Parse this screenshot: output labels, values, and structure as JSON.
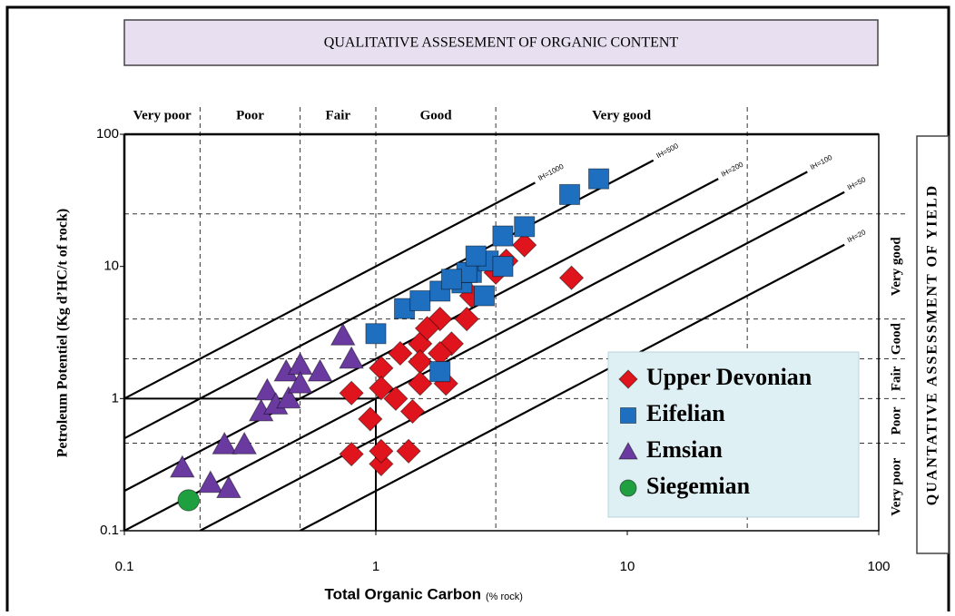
{
  "chart_data": {
    "type": "scatter",
    "title": "QUALITATIVE ASSESEMENT OF ORGANIC CONTENT",
    "right_title": "QUANTATIVE ASSESSMENT OF YIELD",
    "ylabel": "Petroleum Potentiel (Kg d’HC/t of rock)",
    "xlabel": "Total Organic Carbon",
    "xlabel_unit": "(% rock)",
    "log": true,
    "xlim": [
      0.1,
      100
    ],
    "ylim": [
      0.1,
      100
    ],
    "xticks": [
      0.1,
      1,
      10,
      100
    ],
    "yticks": [
      0.1,
      1,
      10,
      100
    ],
    "toc_zones": {
      "labels": [
        "Very poor",
        "Poor",
        "Fair",
        "Good",
        "Very good"
      ],
      "bounds": [
        0.1,
        0.2,
        0.5,
        1,
        3,
        30
      ]
    },
    "yield_zones": {
      "labels": [
        "Very poor",
        "Poor",
        "Fair",
        "Good",
        "Very good"
      ],
      "bounds": [
        0.1,
        0.46,
        1,
        2,
        4,
        25
      ]
    },
    "cutoff": {
      "x": 1,
      "y": 1
    },
    "hi_lines": [
      {
        "label": "IH=1000",
        "hi": 1000,
        "x_end": 4.3
      },
      {
        "label": "IH=500",
        "hi": 500,
        "x_end": 12.7
      },
      {
        "label": "IH=200",
        "hi": 200,
        "x_end": 23
      },
      {
        "label": "IH=100",
        "hi": 100,
        "x_end": 52
      },
      {
        "label": "IH=50",
        "hi": 50,
        "x_end": 73
      },
      {
        "label": "IH=20",
        "hi": 20,
        "x_end": 73
      }
    ],
    "series": [
      {
        "name": "Upper Devonian",
        "color": "#e0141c",
        "shape": "diamond",
        "x": [
          6.0,
          3.9,
          0.8,
          1.05,
          1.25,
          1.5,
          1.5,
          1.5,
          1.2,
          1.4,
          0.95,
          1.05,
          0.8,
          1.05,
          1.05,
          1.35,
          1.9,
          2.0,
          1.8,
          2.3,
          1.6,
          2.4,
          3.0,
          3.3,
          1.8
        ],
        "values": [
          8.2,
          14.5,
          1.1,
          1.7,
          2.2,
          2.6,
          1.9,
          1.3,
          1.0,
          0.8,
          0.7,
          1.2,
          0.38,
          0.32,
          0.4,
          0.4,
          1.3,
          2.6,
          4.0,
          4.0,
          3.4,
          6,
          9,
          11,
          2.2
        ]
      },
      {
        "name": "Eifelian",
        "color": "#1f6fc0",
        "shape": "square",
        "x": [
          1.0,
          1.3,
          1.5,
          1.8,
          2.2,
          2.4,
          2.8,
          3.2,
          3.9,
          5.9,
          7.7,
          1.8,
          2.3,
          2.7,
          2.0,
          2.5,
          3.2
        ],
        "values": [
          3.1,
          4.8,
          5.5,
          6.5,
          7.5,
          9,
          11,
          17,
          20,
          35,
          46,
          1.6,
          9,
          6,
          8,
          12,
          10
        ]
      },
      {
        "name": "Emsian",
        "color": "#6a3aa0",
        "shape": "triangle",
        "x": [
          0.17,
          0.22,
          0.26,
          0.25,
          0.3,
          0.35,
          0.37,
          0.4,
          0.45,
          0.44,
          0.5,
          0.5,
          0.6,
          0.74,
          0.8
        ],
        "values": [
          0.3,
          0.23,
          0.21,
          0.45,
          0.45,
          0.8,
          1.15,
          0.9,
          1.0,
          1.6,
          1.8,
          1.3,
          1.6,
          3.0,
          2.0
        ]
      },
      {
        "name": "Siegemian",
        "color": "#1fa040",
        "shape": "circle",
        "x": [
          0.18
        ],
        "values": [
          0.17
        ]
      }
    ]
  }
}
